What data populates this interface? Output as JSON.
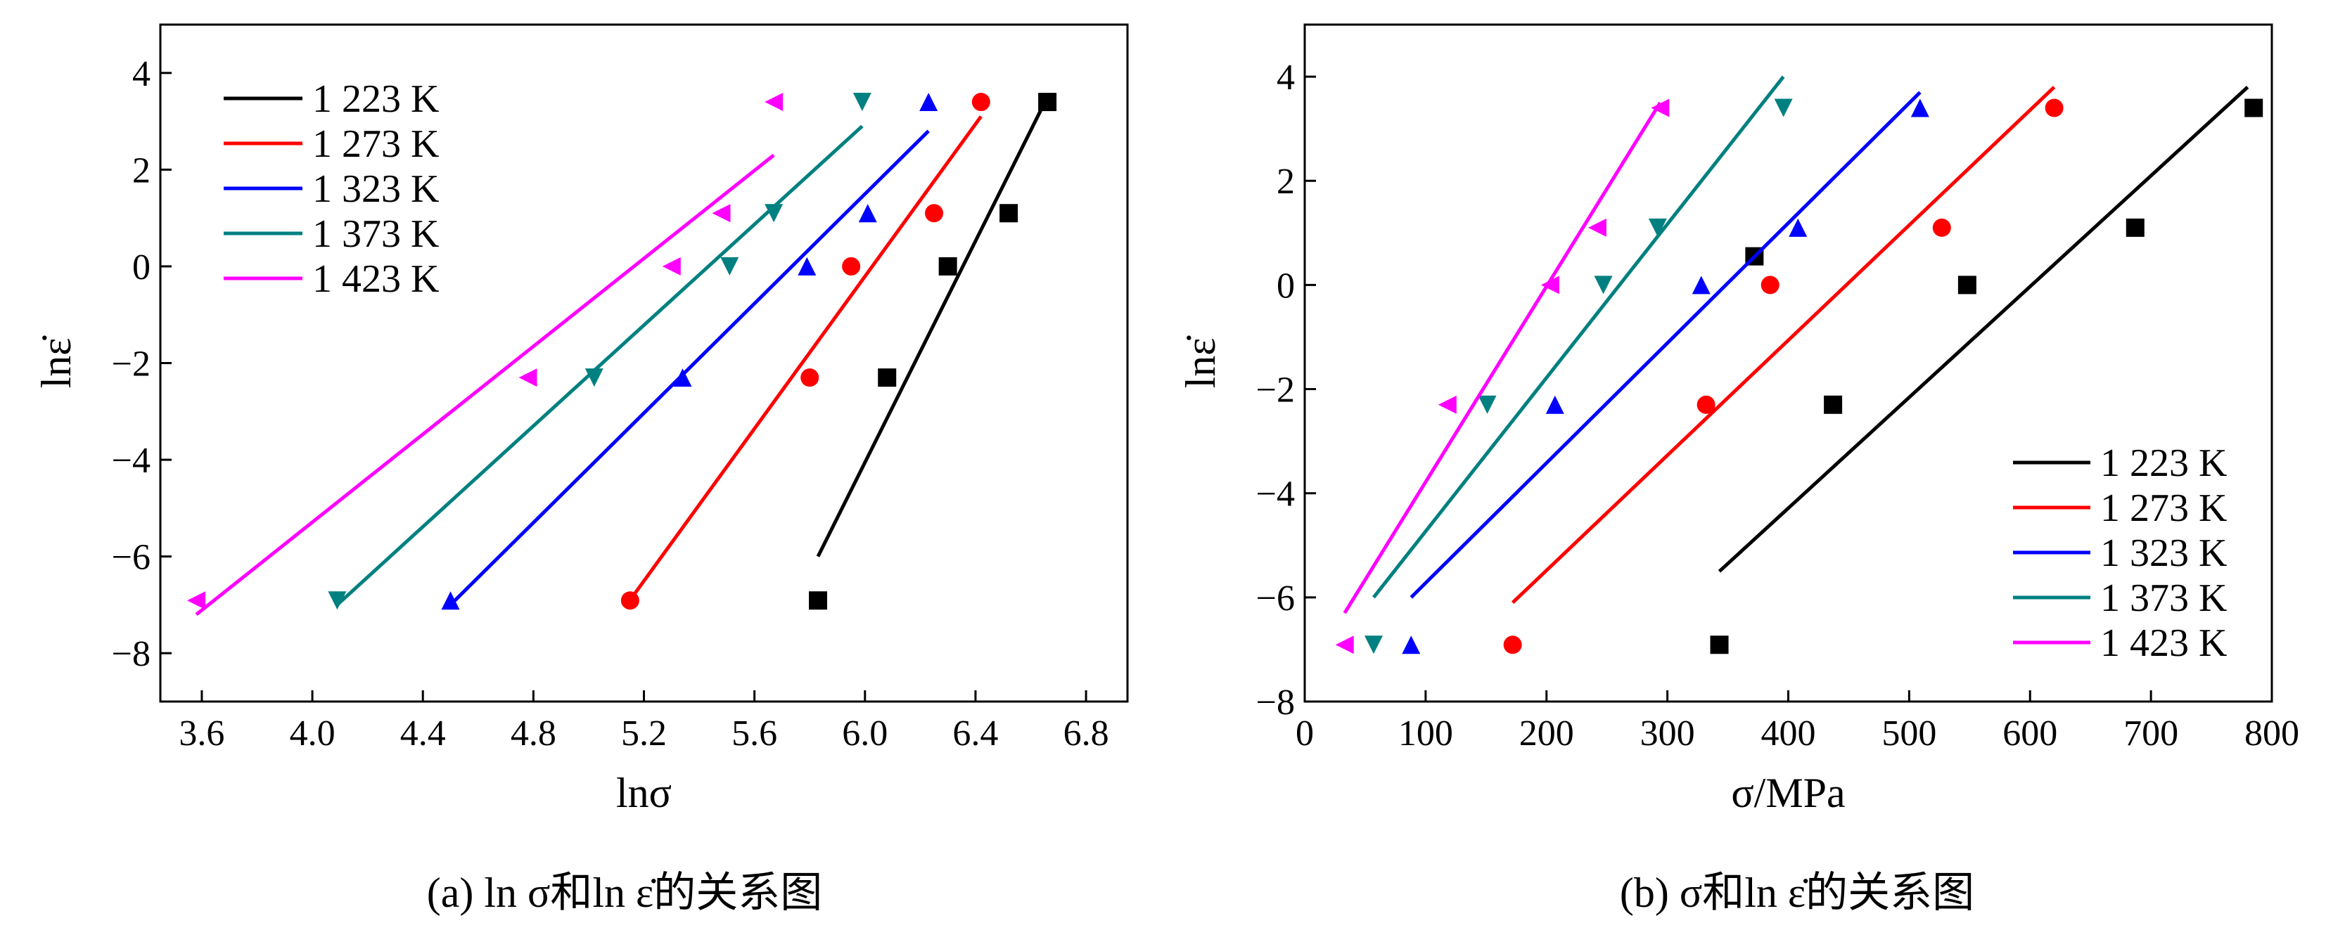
{
  "colors": {
    "1 223 K": "#000000",
    "1 273 K": "#ff0000",
    "1 323 K": "#0000ff",
    "1 373 K": "#008080",
    "1 423 K": "#ff00ff"
  },
  "chart_data": [
    {
      "type": "scatter",
      "caption": "(a) ln σ和ln ε̇的关系图",
      "xlabel": "lnσ",
      "ylabel": "lnε̇",
      "xlim": [
        3.45,
        6.95
      ],
      "ylim": [
        -9,
        5
      ],
      "xticks": [
        3.6,
        4.0,
        4.4,
        4.8,
        5.2,
        5.6,
        6.0,
        6.4,
        6.8
      ],
      "xtick_labels": [
        "3.6",
        "4.0",
        "4.4",
        "4.8",
        "5.2",
        "5.6",
        "6.0",
        "6.4",
        "6.8"
      ],
      "yticks": [
        -8,
        -6,
        -4,
        -2,
        0,
        2,
        4
      ],
      "ytick_labels": [
        "−8",
        "−6",
        "−4",
        "−2",
        "0",
        "2",
        "4"
      ],
      "grid": false,
      "legend_position": "top-left",
      "series": [
        {
          "name": "1 223 K",
          "marker": "square",
          "points": [
            [
              5.83,
              -6.91
            ],
            [
              6.08,
              -2.3
            ],
            [
              6.3,
              0.0
            ],
            [
              6.52,
              1.1
            ],
            [
              6.66,
              3.4
            ]
          ],
          "fit": [
            [
              5.83,
              -6.0
            ],
            [
              6.66,
              3.5
            ]
          ]
        },
        {
          "name": "1 273 K",
          "marker": "circle",
          "points": [
            [
              5.15,
              -6.91
            ],
            [
              5.8,
              -2.3
            ],
            [
              5.95,
              0.0
            ],
            [
              6.25,
              1.1
            ],
            [
              6.42,
              3.4
            ]
          ],
          "fit": [
            [
              5.15,
              -6.9
            ],
            [
              6.42,
              3.1
            ]
          ]
        },
        {
          "name": "1 323 K",
          "marker": "triangle-up",
          "points": [
            [
              4.5,
              -6.91
            ],
            [
              5.34,
              -2.3
            ],
            [
              5.79,
              0.0
            ],
            [
              6.01,
              1.1
            ],
            [
              6.23,
              3.4
            ]
          ],
          "fit": [
            [
              4.5,
              -7.0
            ],
            [
              6.23,
              2.8
            ]
          ]
        },
        {
          "name": "1 373 K",
          "marker": "triangle-down",
          "points": [
            [
              4.09,
              -6.91
            ],
            [
              5.02,
              -2.3
            ],
            [
              5.51,
              0.0
            ],
            [
              5.67,
              1.1
            ],
            [
              5.99,
              3.4
            ]
          ],
          "fit": [
            [
              4.09,
              -7.0
            ],
            [
              5.99,
              2.9
            ]
          ]
        },
        {
          "name": "1 423 K",
          "marker": "triangle-left",
          "points": [
            [
              3.58,
              -6.91
            ],
            [
              4.78,
              -2.3
            ],
            [
              5.3,
              0.0
            ],
            [
              5.48,
              1.1
            ],
            [
              5.67,
              3.4
            ]
          ],
          "fit": [
            [
              3.58,
              -7.2
            ],
            [
              5.67,
              2.3
            ]
          ]
        }
      ]
    },
    {
      "type": "scatter",
      "caption": "(b) σ和ln ε̇的关系图",
      "xlabel": "σ/MPa",
      "ylabel": "lnε̇",
      "xlim": [
        0,
        800
      ],
      "ylim": [
        -8,
        5
      ],
      "xticks": [
        0,
        100,
        200,
        300,
        400,
        500,
        600,
        700,
        800
      ],
      "xtick_labels": [
        "0",
        "100",
        "200",
        "300",
        "400",
        "500",
        "600",
        "700",
        "800"
      ],
      "yticks": [
        -8,
        -6,
        -4,
        -2,
        0,
        2,
        4
      ],
      "ytick_labels": [
        "−8",
        "−6",
        "−4",
        "−2",
        "0",
        "2",
        "4"
      ],
      "grid": false,
      "legend_position": "bottom-right",
      "series": [
        {
          "name": "1 223 K",
          "marker": "square",
          "points": [
            [
              343,
              -6.91
            ],
            [
              372,
              0.55
            ],
            [
              437,
              -2.3
            ],
            [
              548,
              0.0
            ],
            [
              687,
              1.1
            ],
            [
              785,
              3.4
            ]
          ],
          "fit": [
            [
              343,
              -5.5
            ],
            [
              780,
              3.8
            ]
          ]
        },
        {
          "name": "1 273 K",
          "marker": "circle",
          "points": [
            [
              172,
              -6.91
            ],
            [
              332,
              -2.3
            ],
            [
              385,
              0.0
            ],
            [
              527,
              1.1
            ],
            [
              620,
              3.4
            ]
          ],
          "fit": [
            [
              172,
              -6.1
            ],
            [
              620,
              3.8
            ]
          ]
        },
        {
          "name": "1 323 K",
          "marker": "triangle-up",
          "points": [
            [
              88,
              -6.91
            ],
            [
              207,
              -2.3
            ],
            [
              328,
              0.0
            ],
            [
              408,
              1.1
            ],
            [
              509,
              3.4
            ]
          ],
          "fit": [
            [
              88,
              -6.0
            ],
            [
              509,
              3.7
            ]
          ]
        },
        {
          "name": "1 373 K",
          "marker": "triangle-down",
          "points": [
            [
              57,
              -6.91
            ],
            [
              151,
              -2.3
            ],
            [
              247,
              0.0
            ],
            [
              292,
              1.1
            ],
            [
              396,
              3.4
            ]
          ],
          "fit": [
            [
              57,
              -6.0
            ],
            [
              396,
              4.0
            ]
          ]
        },
        {
          "name": "1 423 K",
          "marker": "triangle-left",
          "points": [
            [
              33,
              -6.91
            ],
            [
              118,
              -2.3
            ],
            [
              203,
              0.0
            ],
            [
              242,
              1.1
            ],
            [
              294,
              3.4
            ]
          ],
          "fit": [
            [
              33,
              -6.3
            ],
            [
              294,
              3.5
            ]
          ]
        }
      ]
    }
  ]
}
